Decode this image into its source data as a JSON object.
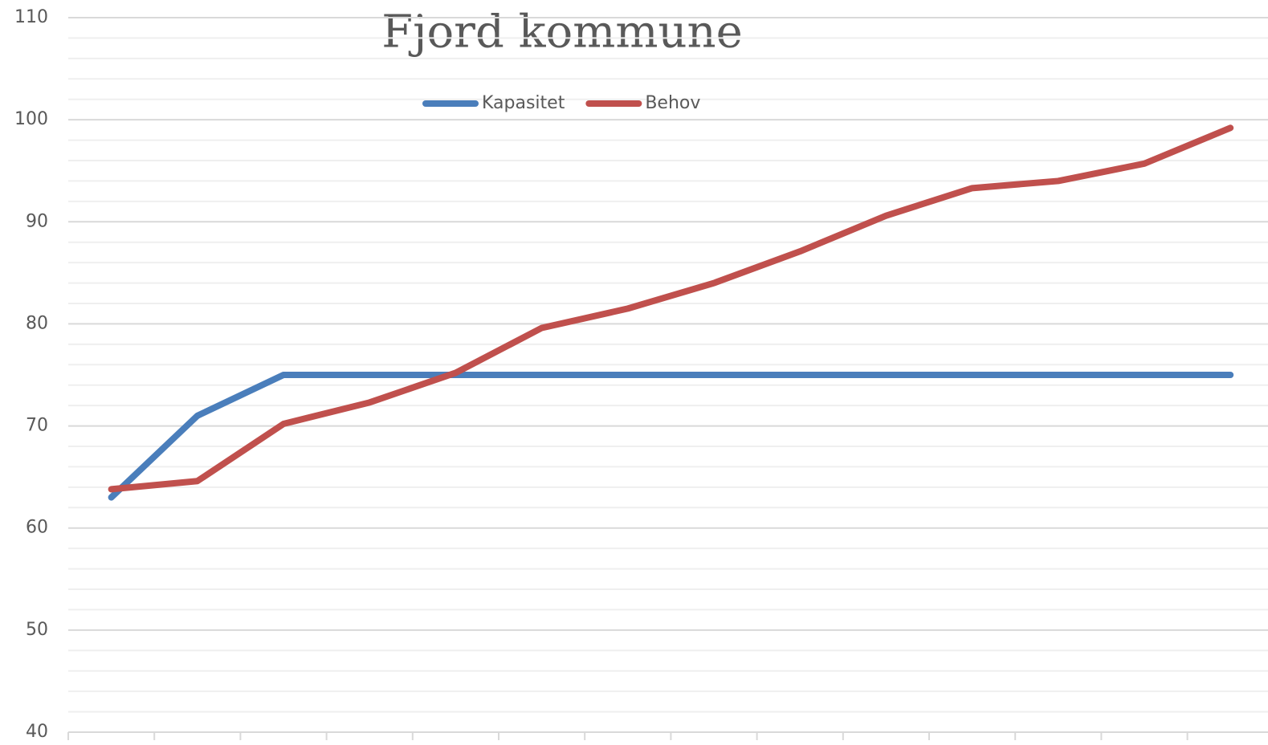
{
  "chart_data": {
    "type": "line",
    "title": "Fjord kommune",
    "categories": [
      null,
      null,
      null,
      null,
      null,
      null,
      null,
      null,
      null,
      null,
      null,
      null,
      null,
      null
    ],
    "series": [
      {
        "name": "Kapasitet",
        "color": "#4a7ebb",
        "values": [
          63,
          71,
          75,
          75,
          75,
          75,
          75,
          75,
          75,
          75,
          75,
          75,
          75,
          75
        ]
      },
      {
        "name": "Behov",
        "color": "#c0504d",
        "values": [
          63.8,
          64.6,
          70.2,
          72.3,
          75.2,
          79.6,
          81.5,
          84,
          87.1,
          90.6,
          93.3,
          94,
          95.7,
          99.2
        ]
      }
    ],
    "ylim": [
      40,
      110
    ],
    "yticks": [
      40,
      50,
      60,
      70,
      80,
      90,
      100,
      110
    ],
    "grid": true,
    "minor_grid": true,
    "legend": "top"
  }
}
